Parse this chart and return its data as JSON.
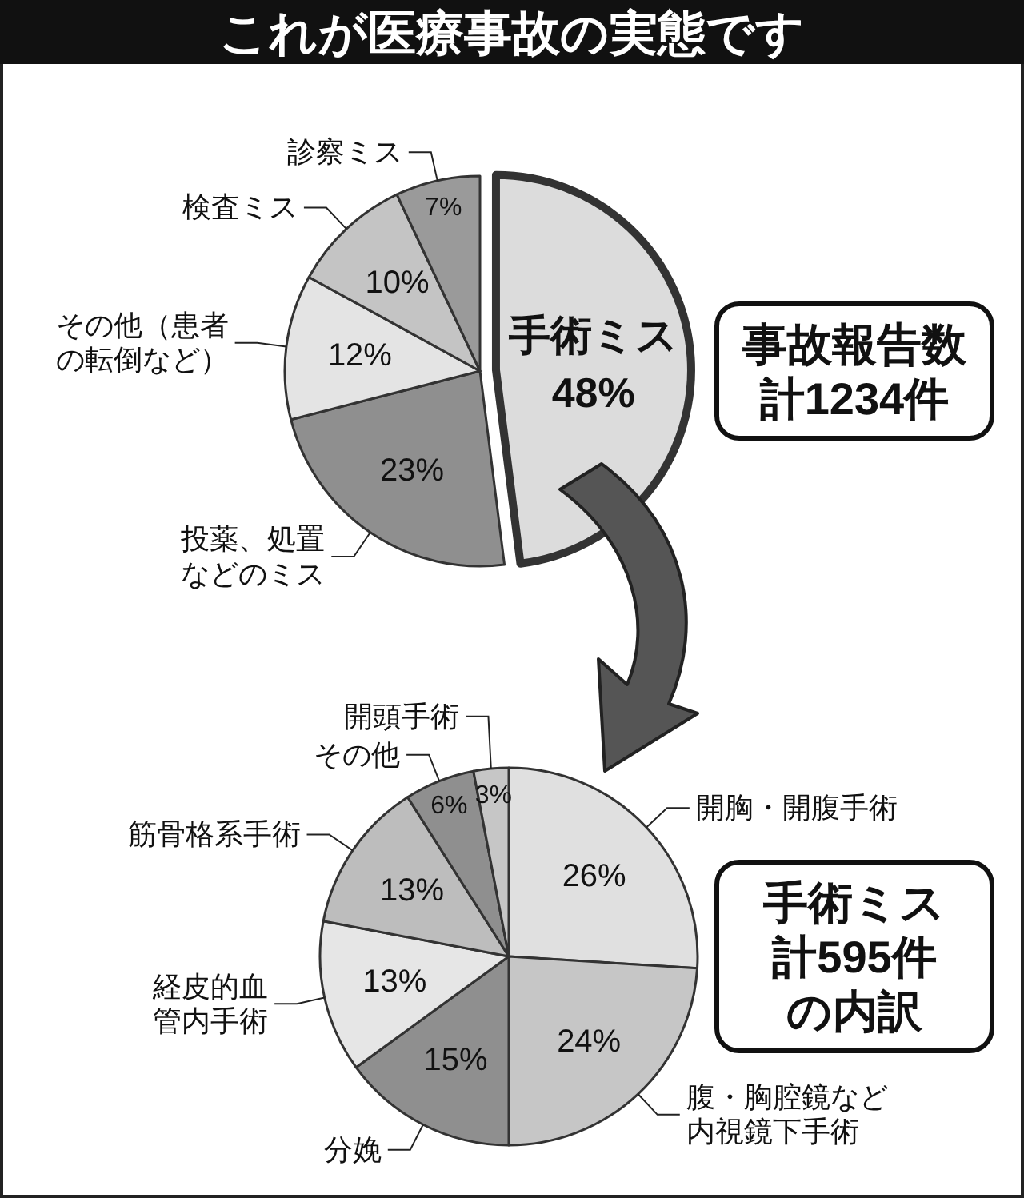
{
  "chart_data": [
    {
      "type": "pie",
      "title": "これが医療事故の実態です",
      "categories": [
        "手術ミス",
        "投薬、処置などのミス",
        "その他（患者の転倒など）",
        "検査ミス",
        "診察ミス"
      ],
      "values": [
        48,
        23,
        12,
        10,
        7
      ],
      "colors": [
        "#dcdcdc",
        "#8f8f8f",
        "#e4e4e4",
        "#c4c4c4",
        "#9a9a9a"
      ],
      "value_labels": [
        "48%",
        "23%",
        "12%",
        "10%",
        "7%"
      ],
      "annotations": [
        "事故報告数",
        "計1234件"
      ]
    },
    {
      "type": "pie",
      "categories": [
        "開胸・開腹手術",
        "腹・胸腔鏡など内視鏡下手術",
        "分娩",
        "経皮的血管内手術",
        "筋骨格系手術",
        "その他",
        "開頭手術"
      ],
      "values": [
        26,
        24,
        15,
        13,
        13,
        6,
        3
      ],
      "colors": [
        "#e0e0e0",
        "#c6c6c6",
        "#8f8f8f",
        "#e6e6e6",
        "#bdbdbd",
        "#8f8f8f",
        "#c6c6c6"
      ],
      "value_labels": [
        "26%",
        "24%",
        "15%",
        "13%",
        "13%",
        "6%",
        "3%"
      ],
      "annotations": [
        "手術ミス",
        "計595件",
        "の内訳"
      ]
    }
  ]
}
